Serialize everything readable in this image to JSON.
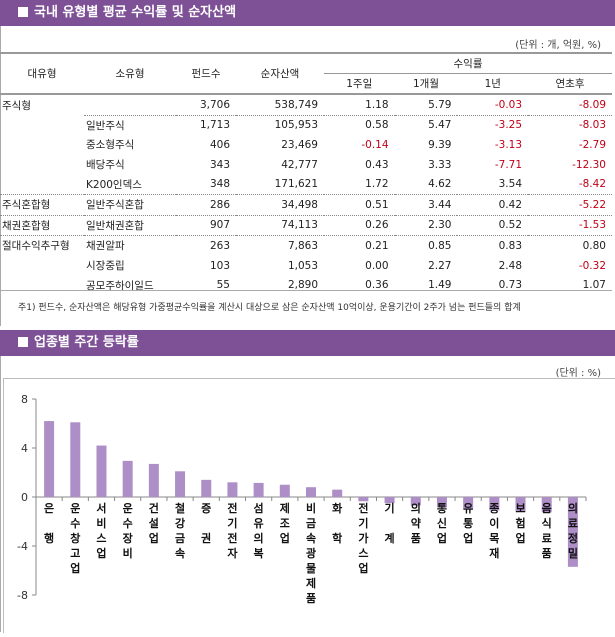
{
  "section1": {
    "title": "국내 유형별 평균 수익률 및 순자산액",
    "unit": "(단위 : 개, 억원, %)",
    "headers": {
      "major": "대유형",
      "minor": "소유형",
      "funds": "펀드수",
      "assets": "순자산액",
      "returns": "수익률",
      "w1": "1주일",
      "m1": "1개월",
      "y1": "1년",
      "ytd": "연초후"
    },
    "rows": [
      [
        "주식형",
        "",
        "3,706",
        "538,749",
        "1.18",
        "5.79",
        "-0.03",
        "-8.09"
      ],
      [
        "",
        "일반주식",
        "1,713",
        "105,953",
        "0.58",
        "5.47",
        "-3.25",
        "-8.03"
      ],
      [
        "",
        "중소형주식",
        "406",
        "23,469",
        "-0.14",
        "9.39",
        "-3.13",
        "-2.79"
      ],
      [
        "",
        "배당주식",
        "343",
        "42,777",
        "0.43",
        "3.33",
        "-7.71",
        "-12.30"
      ],
      [
        "",
        "K200인덱스",
        "348",
        "171,621",
        "1.72",
        "4.62",
        "3.54",
        "-8.42"
      ],
      [
        "주식혼합형",
        "일반주식혼합",
        "286",
        "34,498",
        "0.51",
        "3.44",
        "0.42",
        "-5.22"
      ],
      [
        "채권혼합형",
        "일반채권혼합",
        "907",
        "74,113",
        "0.26",
        "2.30",
        "0.52",
        "-1.53"
      ],
      [
        "절대수익추구형",
        "채권알파",
        "263",
        "7,863",
        "0.21",
        "0.85",
        "0.83",
        "0.80"
      ],
      [
        "",
        "시장중립",
        "103",
        "1,053",
        "0.00",
        "2.27",
        "2.48",
        "-0.32"
      ],
      [
        "",
        "공모주하이일드",
        "55",
        "2,890",
        "0.36",
        "1.49",
        "0.73",
        "1.07"
      ]
    ],
    "note": "주1) 펀드수, 순자산액은 해당유형 가중평균수익률을 계산시 대상으로 삼은 순자산액 10억이상, 운용기간이 2주가 넘는 펀드들의 합계"
  },
  "section2": {
    "title": "업종별 주간 등락률",
    "unit": "(단위 : %)"
  },
  "colors": {
    "header": "#7e5196",
    "bar": "#ae8ec6",
    "negative": "#c00018"
  },
  "chart_data": {
    "type": "bar",
    "ylim": [
      -8,
      8
    ],
    "yticks": [
      -8,
      -4,
      0,
      4,
      8
    ],
    "grid": false,
    "categories": [
      "은행",
      "운수창고업",
      "서비스업",
      "운수장비",
      "건설업",
      "철강금속",
      "증권",
      "전기전자",
      "섬유의복",
      "제조업",
      "비금속광물제품",
      "화학",
      "전기가스업",
      "기계",
      "의약품",
      "통신업",
      "유통업",
      "종이목재",
      "보험업",
      "음식료품",
      "의료정밀"
    ],
    "labels": [
      [
        "은",
        "",
        "행"
      ],
      [
        "운",
        "수",
        "창",
        "고",
        "업"
      ],
      [
        "서",
        "비",
        "스",
        "업"
      ],
      [
        "운",
        "수",
        "장",
        "비"
      ],
      [
        "건",
        "설",
        "업"
      ],
      [
        "철",
        "강",
        "금",
        "속"
      ],
      [
        "증",
        "",
        "권"
      ],
      [
        "전",
        "기",
        "전",
        "자"
      ],
      [
        "섬",
        "유",
        "의",
        "복"
      ],
      [
        "제",
        "조",
        "업"
      ],
      [
        "비",
        "금",
        "속",
        "광",
        "물",
        "제",
        "품"
      ],
      [
        "화",
        "",
        "학"
      ],
      [
        "전",
        "기",
        "가",
        "스",
        "업"
      ],
      [
        "기",
        "",
        "계"
      ],
      [
        "의",
        "약",
        "품"
      ],
      [
        "통",
        "신",
        "업"
      ],
      [
        "유",
        "통",
        "업"
      ],
      [
        "종",
        "이",
        "목",
        "재"
      ],
      [
        "보",
        "험",
        "업"
      ],
      [
        "음",
        "식",
        "료",
        "품"
      ],
      [
        "의",
        "료",
        "정",
        "밀"
      ]
    ],
    "values": [
      6.2,
      6.1,
      4.2,
      2.95,
      2.7,
      2.1,
      1.4,
      1.2,
      1.15,
      1.0,
      0.8,
      0.6,
      -0.35,
      -0.5,
      -0.7,
      -0.85,
      -1.0,
      -1.1,
      -1.15,
      -1.25,
      -5.7
    ]
  }
}
